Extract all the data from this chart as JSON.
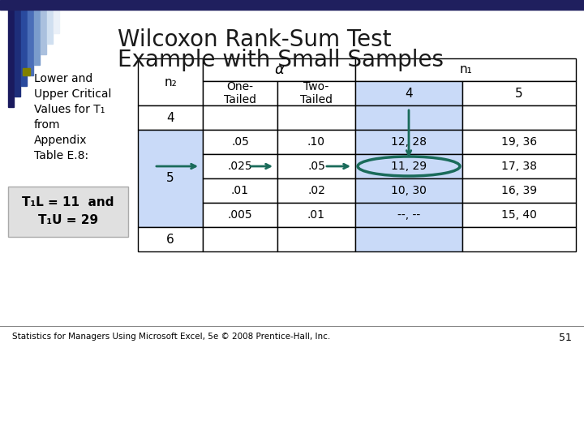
{
  "title_line1": "Wilcoxon Rank-Sum Test",
  "title_line2": "Example with Small Samples",
  "bullet_lines": [
    "Lower and",
    "Upper Critical",
    "Values for T₁",
    "from",
    "Appendix",
    "Table E.8:"
  ],
  "box_line1": "T₁L = 11  and",
  "box_line2": "T₁U = 29",
  "footer": "Statistics for Managers Using Microsoft Excel, 5e © 2008 Prentice-Hall, Inc.",
  "page_num": "51",
  "bg_color": "#ffffff",
  "top_bar_color": "#1f1f5e",
  "title_color": "#1a1a1a",
  "light_blue": "#c9daf8",
  "arrow_color": "#1a6b5a",
  "gray_box_bg": "#e0e0e0",
  "stripe_colors": [
    "#1a1a5e",
    "#1e2e7a",
    "#2a4a9e",
    "#4a6eb8",
    "#7a9ccc",
    "#aac0de",
    "#d0dff0",
    "#eaf0f8"
  ],
  "n25_data": [
    [
      ".05",
      ".10",
      "12, 28",
      "19, 36"
    ],
    [
      ".025",
      ".05",
      "11, 29",
      "17, 38"
    ],
    [
      ".01",
      ".02",
      "10, 30",
      "16, 39"
    ],
    [
      ".005",
      ".01",
      "--, --",
      "15, 40"
    ]
  ]
}
